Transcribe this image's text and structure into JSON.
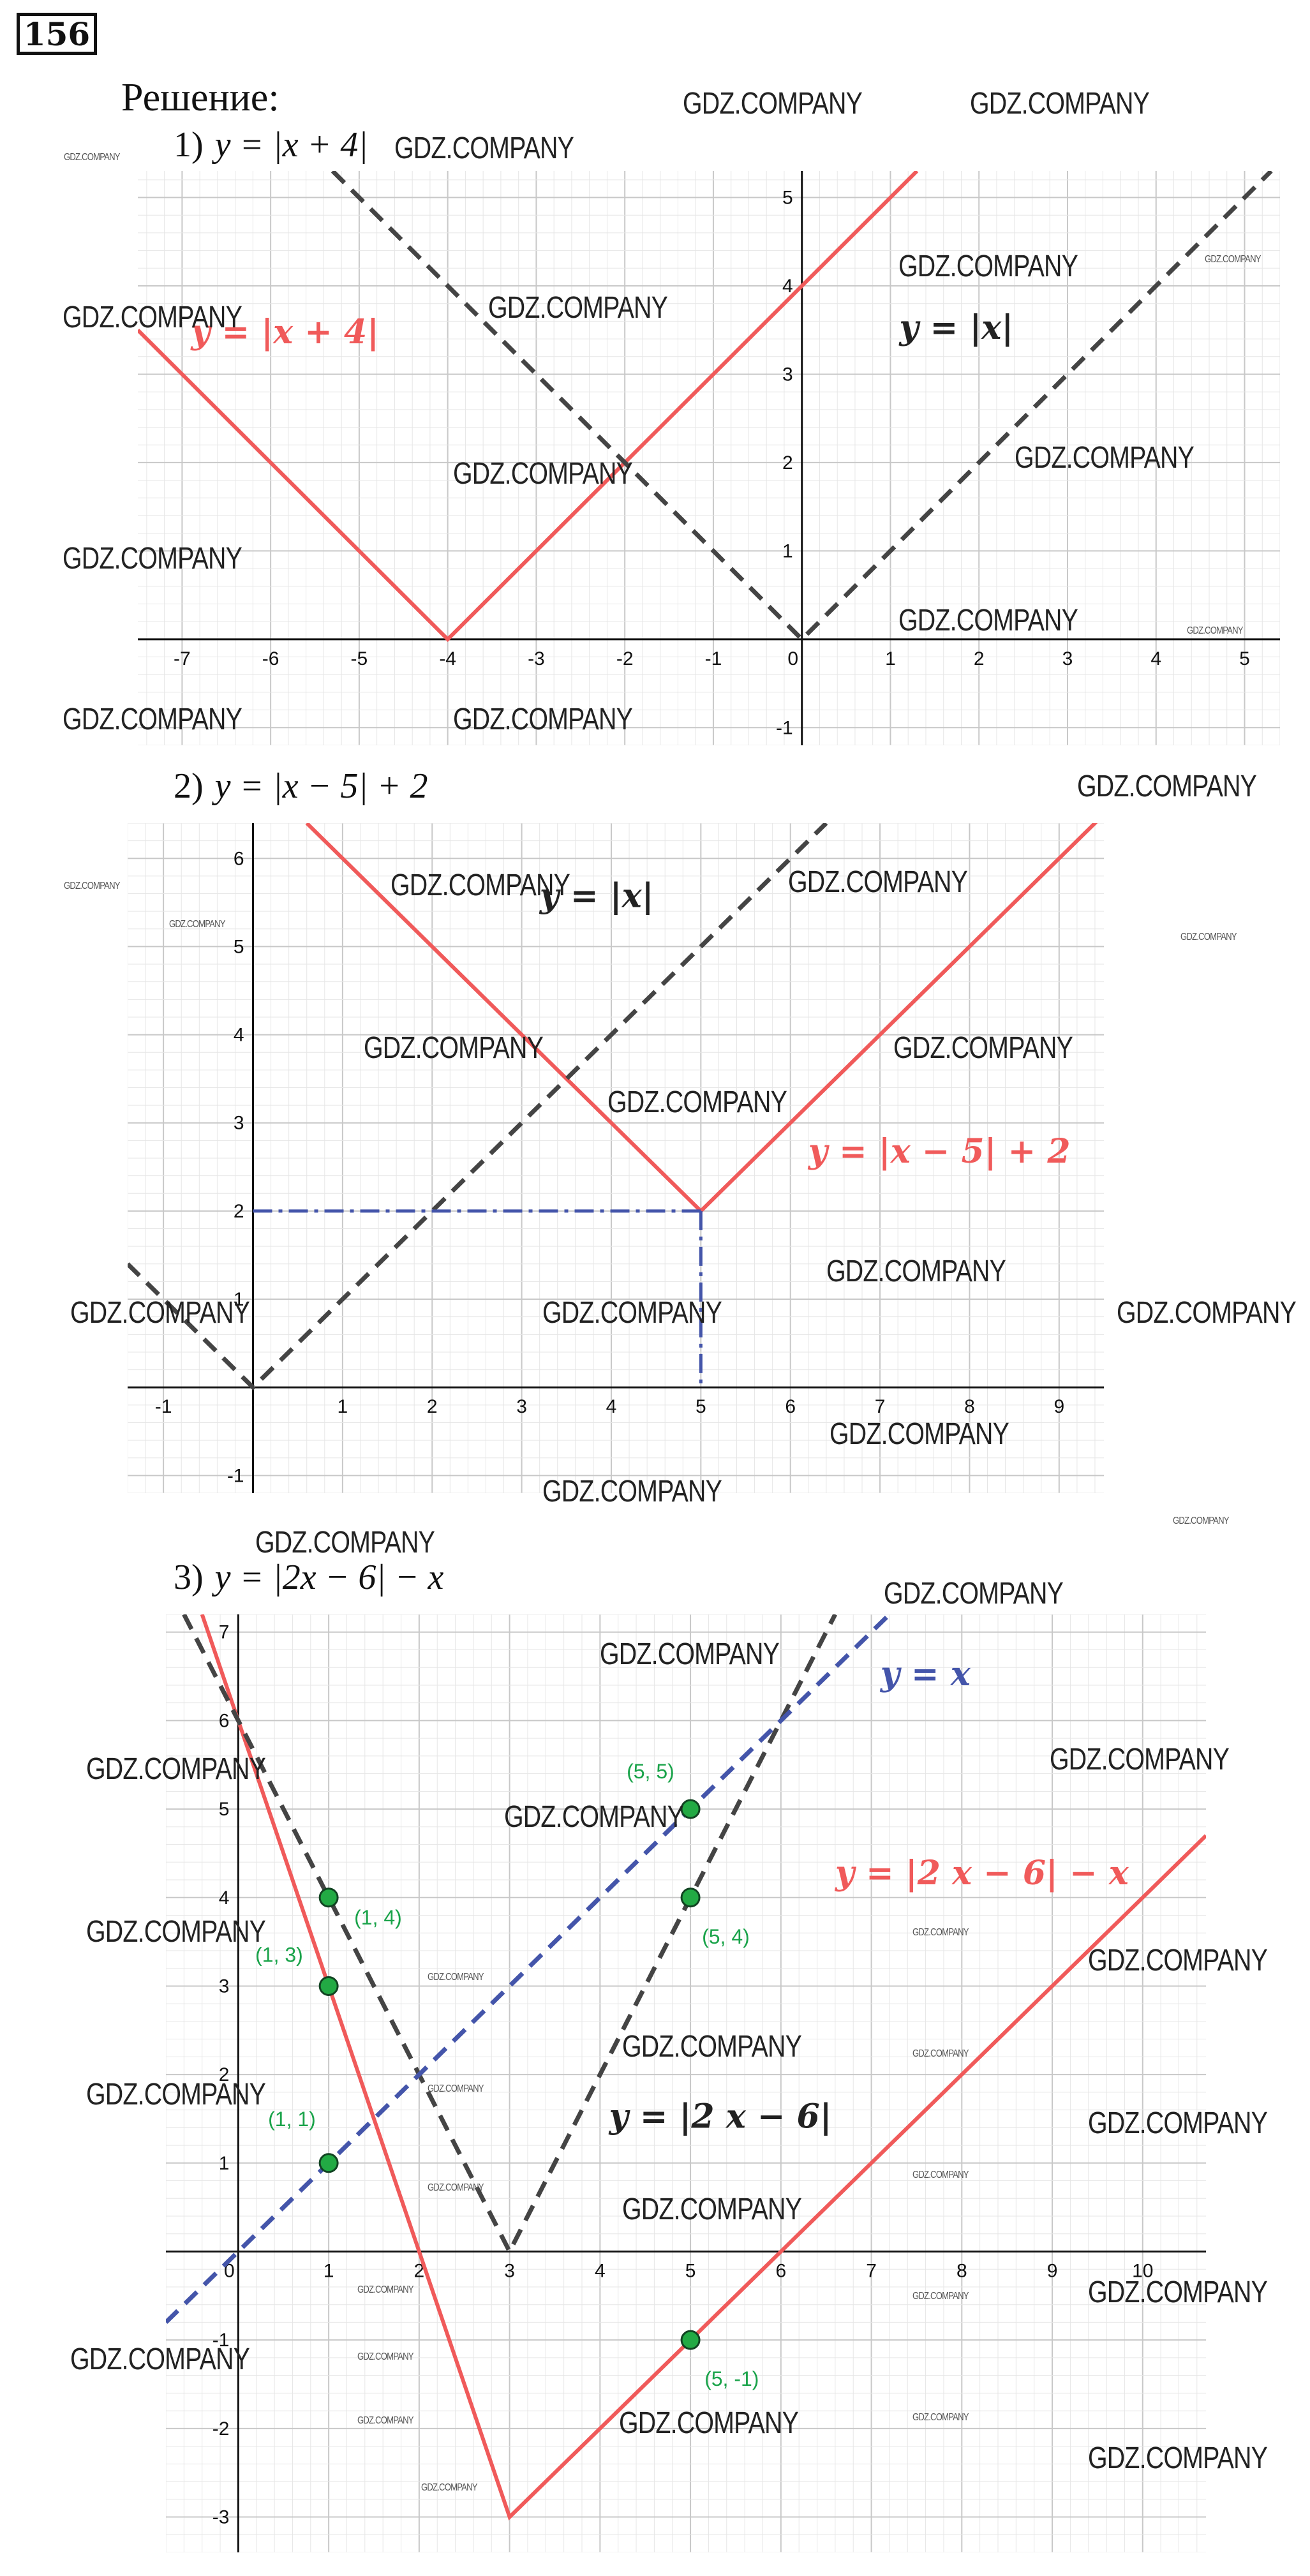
{
  "header": {
    "task_number": "156",
    "solution_label": "Решение:"
  },
  "parts": [
    {
      "num": "1)",
      "equation": "y = |x + 4|"
    },
    {
      "num": "2)",
      "equation": "y = |x − 5| + 2"
    },
    {
      "num": "3)",
      "equation": "y = |2x − 6| − x"
    }
  ],
  "watermark_text": "GDZ.COMPANY",
  "colors": {
    "red": "#f05a5a",
    "gray": "#444444",
    "blue": "#4455aa",
    "green": "#22aa44",
    "grid_major": "#c8c8c8",
    "grid_minor": "#e6e6e6"
  },
  "chart_data": [
    {
      "type": "line",
      "x_range": [
        -7.5,
        5.4
      ],
      "y_range": [
        -1.2,
        5.3
      ],
      "x_ticks": [
        "-7",
        "-6",
        "-5",
        "-4",
        "-3",
        "-2",
        "-1",
        "0",
        "1",
        "2",
        "3",
        "4",
        "5"
      ],
      "y_ticks": [
        "-1",
        "1",
        "2",
        "3",
        "4",
        "5"
      ],
      "series": [
        {
          "name": "y = |x + 4|",
          "style": "solid",
          "color": "red",
          "points": [
            [
              -7.5,
              3.5
            ],
            [
              -4,
              0
            ],
            [
              1.3,
              5.3
            ]
          ]
        },
        {
          "name": "y = |x|",
          "style": "dashed",
          "color": "gray",
          "points": [
            [
              -5.3,
              5.3
            ],
            [
              0,
              0
            ],
            [
              5.3,
              5.3
            ]
          ]
        }
      ],
      "labels": [
        {
          "text": "y = |x + 4|",
          "x": -6.9,
          "y": 3.35,
          "color": "red"
        },
        {
          "text": "y = |x|",
          "x": 1.1,
          "y": 3.4,
          "color": "black"
        }
      ]
    },
    {
      "type": "line",
      "x_range": [
        -1.4,
        9.5
      ],
      "y_range": [
        -1.2,
        6.4
      ],
      "x_ticks": [
        "-1",
        "1",
        "2",
        "3",
        "4",
        "5",
        "6",
        "7",
        "8",
        "9"
      ],
      "y_ticks": [
        "-1",
        "1",
        "2",
        "3",
        "4",
        "5",
        "6"
      ],
      "series": [
        {
          "name": "y = |x − 5| + 2",
          "style": "solid",
          "color": "red",
          "points": [
            [
              0.6,
              6.4
            ],
            [
              5,
              2
            ],
            [
              9.5,
              6.5
            ]
          ]
        },
        {
          "name": "y = |x|",
          "style": "dashed",
          "color": "gray",
          "points": [
            [
              -1.4,
              1.4
            ],
            [
              0,
              0
            ],
            [
              6.4,
              6.4
            ]
          ]
        },
        {
          "name": "guide-horizontal",
          "style": "dashdot",
          "color": "blue",
          "points": [
            [
              0,
              2
            ],
            [
              5,
              2
            ]
          ]
        },
        {
          "name": "guide-vertical",
          "style": "dashdot",
          "color": "blue",
          "points": [
            [
              5,
              2
            ],
            [
              5,
              0
            ]
          ]
        }
      ],
      "labels": [
        {
          "text": "y = |x|",
          "x": 3.2,
          "y": 5.45,
          "color": "black"
        },
        {
          "text": "y = |x − 5| + 2",
          "x": 6.2,
          "y": 2.55,
          "color": "red"
        }
      ]
    },
    {
      "type": "line",
      "x_range": [
        -0.8,
        10.7
      ],
      "y_range": [
        -3.4,
        7.2
      ],
      "x_ticks": [
        "0",
        "1",
        "2",
        "3",
        "4",
        "5",
        "6",
        "7",
        "8",
        "9",
        "10"
      ],
      "y_ticks": [
        "-3",
        "-2",
        "-1",
        "1",
        "2",
        "3",
        "4",
        "5",
        "6",
        "7"
      ],
      "series": [
        {
          "name": "y = |2 x − 6| − x",
          "style": "solid",
          "color": "red",
          "points": [
            [
              -0.4,
              7.2
            ],
            [
              3,
              -3
            ],
            [
              10.7,
              4.7
            ]
          ]
        },
        {
          "name": "y = |2 x − 6|",
          "style": "dashed",
          "color": "gray",
          "points": [
            [
              -0.6,
              7.2
            ],
            [
              3,
              0
            ],
            [
              6.6,
              7.2
            ]
          ]
        },
        {
          "name": "y = x",
          "style": "dashed",
          "color": "blue",
          "points": [
            [
              -0.8,
              -0.8
            ],
            [
              7.2,
              7.2
            ]
          ]
        }
      ],
      "points": [
        {
          "x": 5,
          "y": 5,
          "label": "(5, 5)"
        },
        {
          "x": 1,
          "y": 4,
          "label": "(1, 4)"
        },
        {
          "x": 5,
          "y": 4,
          "label": "(5, 4)"
        },
        {
          "x": 1,
          "y": 3,
          "label": "(1, 3)"
        },
        {
          "x": 1,
          "y": 1,
          "label": "(1, 1)"
        },
        {
          "x": 5,
          "y": -1,
          "label": "(5, -1)"
        }
      ],
      "labels": [
        {
          "text": "y = x",
          "x": 7.1,
          "y": 6.4,
          "color": "blue"
        },
        {
          "text": "y = |2 x − 6| − x",
          "x": 6.6,
          "y": 4.15,
          "color": "red"
        },
        {
          "text": "y = |2 x − 6|",
          "x": 4.1,
          "y": 1.4,
          "color": "black"
        }
      ]
    }
  ]
}
